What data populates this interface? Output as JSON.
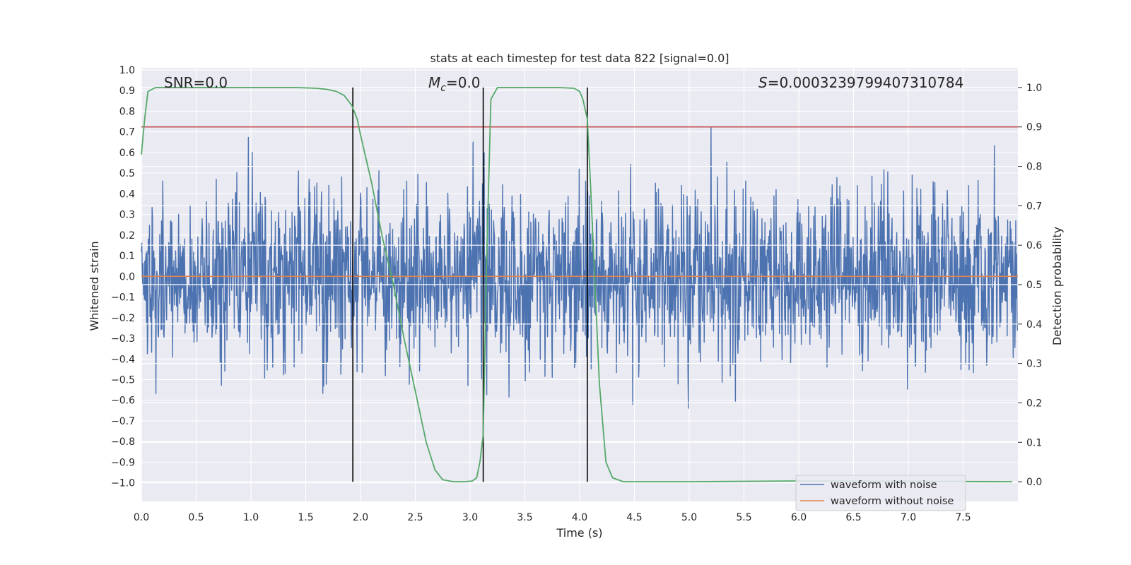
{
  "chart_data": {
    "type": "line",
    "title": "stats at each timestep for test data 822 [signal=0.0]",
    "xlabel": "Time (s)",
    "ylabel": "Whitened strain",
    "y2label": "Detection probability",
    "xlim": [
      0.0,
      8.0
    ],
    "ylim": [
      -1.09,
      1.01
    ],
    "y2lim": [
      -0.05,
      1.05
    ],
    "grid": true,
    "legend_position": "lower-right",
    "x_ticks": [
      "0.0",
      "0.5",
      "1.0",
      "1.5",
      "2.0",
      "2.5",
      "3.0",
      "3.5",
      "4.0",
      "4.5",
      "5.0",
      "5.5",
      "6.0",
      "6.5",
      "7.0",
      "7.5"
    ],
    "x_tick_values": [
      0.0,
      0.5,
      1.0,
      1.5,
      2.0,
      2.5,
      3.0,
      3.5,
      4.0,
      4.5,
      5.0,
      5.5,
      6.0,
      6.5,
      7.0,
      7.5
    ],
    "y_ticks": [
      "1.0",
      "0.9",
      "0.8",
      "0.7",
      "0.6",
      "0.5",
      "0.4",
      "0.3",
      "0.2",
      "0.1",
      "0.0",
      "−0.1",
      "−0.2",
      "−0.3",
      "−0.4",
      "−0.5",
      "−0.6",
      "−0.7",
      "−0.8",
      "−0.9",
      "−1.0"
    ],
    "y_tick_values": [
      1.0,
      0.9,
      0.8,
      0.7,
      0.6,
      0.5,
      0.4,
      0.3,
      0.2,
      0.1,
      0.0,
      -0.1,
      -0.2,
      -0.3,
      -0.4,
      -0.5,
      -0.6,
      -0.7,
      -0.8,
      -0.9,
      -1.0
    ],
    "y2_ticks": [
      "1.0",
      "0.9",
      "0.8",
      "0.7",
      "0.6",
      "0.5",
      "0.4",
      "0.3",
      "0.2",
      "0.1",
      "0.0"
    ],
    "y2_tick_values": [
      1.0,
      0.9,
      0.8,
      0.7,
      0.6,
      0.5,
      0.4,
      0.3,
      0.2,
      0.1,
      0.0
    ],
    "annotations": [
      {
        "name": "snr-annotation",
        "text": "SNR=0.0"
      },
      {
        "name": "chirp-mass-annotation",
        "symbol": "M",
        "subscript": "c",
        "text": "=0.0"
      },
      {
        "name": "score-annotation",
        "symbol": "S",
        "text": "=0.0003239799407310784"
      }
    ],
    "vertical_markers": [
      1.93,
      3.12,
      4.07
    ],
    "threshold": {
      "value": 0.9,
      "axis": "y2"
    },
    "series": [
      {
        "name": "waveform with noise",
        "color": "#4c72b0",
        "axis": "y",
        "style": "dense-noise",
        "sample_rate": 256,
        "approx_std": 0.21,
        "approx_range": [
          -0.99,
          0.92
        ]
      },
      {
        "name": "waveform without noise",
        "color": "#dd8452",
        "axis": "y",
        "x": [
          0.0,
          8.0
        ],
        "y": [
          0.0,
          0.0
        ]
      },
      {
        "name": "detection probability",
        "color": "#55a868",
        "axis": "y2",
        "legend": false,
        "x": [
          0.0,
          0.03,
          0.06,
          0.13,
          0.2,
          0.5,
          1.0,
          1.4,
          1.6,
          1.7,
          1.78,
          1.85,
          1.92,
          1.97,
          2.0,
          2.05,
          2.1,
          2.2,
          2.3,
          2.4,
          2.5,
          2.6,
          2.68,
          2.75,
          2.85,
          2.95,
          3.02,
          3.06,
          3.09,
          3.12,
          3.15,
          3.19,
          3.25,
          3.5,
          3.8,
          3.95,
          4.0,
          4.03,
          4.07,
          4.1,
          4.14,
          4.18,
          4.24,
          4.3,
          4.4,
          5.0,
          6.0,
          7.0,
          7.95
        ],
        "y": [
          0.83,
          0.92,
          0.99,
          1.0,
          1.0,
          1.0,
          1.0,
          1.0,
          0.998,
          0.995,
          0.99,
          0.98,
          0.955,
          0.92,
          0.88,
          0.82,
          0.76,
          0.62,
          0.5,
          0.36,
          0.23,
          0.1,
          0.03,
          0.005,
          0.0,
          0.0,
          0.002,
          0.01,
          0.05,
          0.12,
          0.55,
          0.97,
          1.0,
          1.0,
          1.0,
          0.998,
          0.99,
          0.97,
          0.92,
          0.75,
          0.5,
          0.25,
          0.05,
          0.01,
          0.0,
          0.0,
          0.002,
          0.001,
          0.0
        ]
      }
    ]
  }
}
